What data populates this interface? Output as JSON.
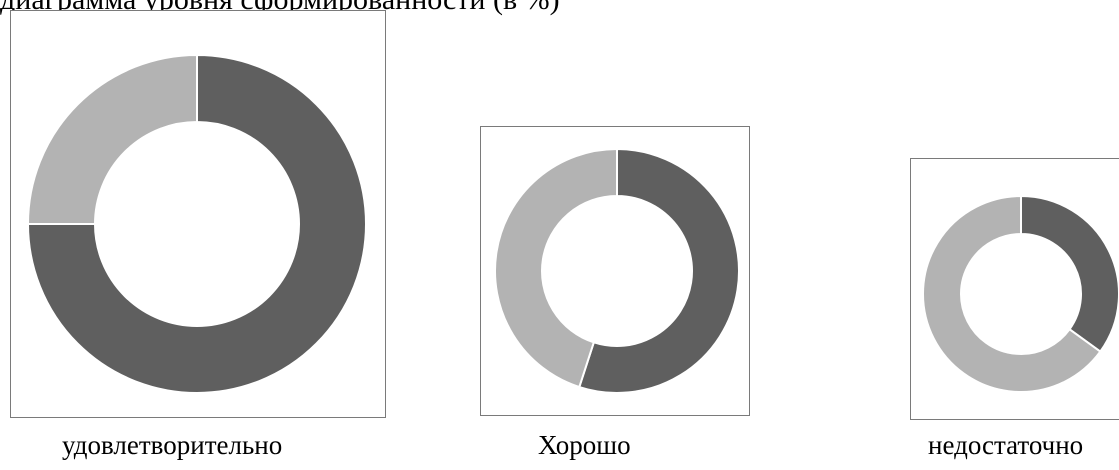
{
  "header": {
    "text": "диаграмма уровня сформированности (в %)"
  },
  "colors": {
    "dark": "#5f5f5f",
    "light": "#b3b3b3"
  },
  "chart_data": [
    {
      "type": "pie",
      "caption": "удовлетворительно",
      "slices": [
        {
          "color": "dark",
          "value": 75
        },
        {
          "color": "light",
          "value": 25
        }
      ]
    },
    {
      "type": "pie",
      "caption": "Хорошо",
      "slices": [
        {
          "color": "dark",
          "value": 55
        },
        {
          "color": "light",
          "value": 45
        }
      ]
    },
    {
      "type": "pie",
      "caption": "недостаточно",
      "slices": [
        {
          "color": "dark",
          "value": 35
        },
        {
          "color": "light",
          "value": 65
        }
      ]
    }
  ]
}
